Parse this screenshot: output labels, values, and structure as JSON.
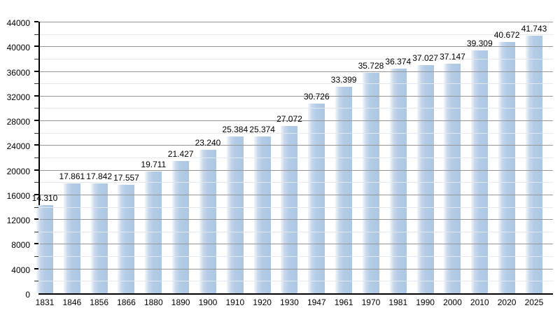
{
  "chart_data": {
    "type": "bar",
    "title": "",
    "xlabel": "",
    "ylabel": "",
    "categories": [
      "1831",
      "1846",
      "1856",
      "1866",
      "1880",
      "1890",
      "1900",
      "1910",
      "1920",
      "1930",
      "1947",
      "1961",
      "1970",
      "1981",
      "1990",
      "2000",
      "2010",
      "2020",
      "2025"
    ],
    "values": [
      14310,
      17861,
      17842,
      17557,
      19711,
      21427,
      23240,
      25384,
      25374,
      27072,
      30726,
      33399,
      35728,
      36374,
      37027,
      37147,
      39309,
      40672,
      41743
    ],
    "value_labels": [
      "14.310",
      "17.861",
      "17.842",
      "17.557",
      "19.711",
      "21.427",
      "23.240",
      "25.384",
      "25.374",
      "27.072",
      "30.726",
      "33.399",
      "35.728",
      "36.374",
      "37.027",
      "37.147",
      "39.309",
      "40.672",
      "41.743"
    ],
    "ylim": [
      0,
      44000
    ],
    "y_major_step": 4000,
    "y_minor_step": 2000,
    "y_tick_labels": [
      "0",
      "4000",
      "8000",
      "12000",
      "16000",
      "20000",
      "24000",
      "28000",
      "32000",
      "36000",
      "40000",
      "44000"
    ],
    "grid": "on",
    "legend": "none",
    "colors": {
      "bar_fill": "#b3cce7",
      "bar_gradient_left": "#f2f6fb",
      "major_grid": "#979797",
      "minor_grid": "#e4e8ee",
      "axis": "#000000",
      "text": "#000000",
      "background": "#ffffff"
    }
  }
}
